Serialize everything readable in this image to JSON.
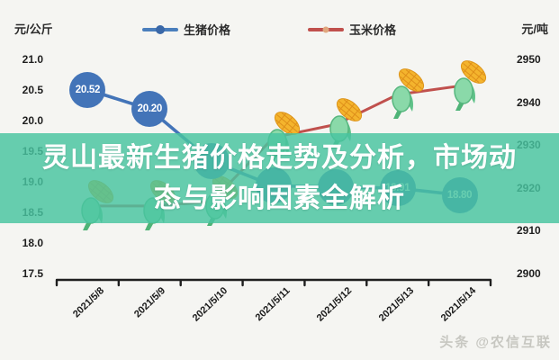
{
  "header": {
    "left_unit": "元/公斤",
    "right_unit": "元/吨"
  },
  "legend": [
    {
      "label": "生猪价格",
      "color": "#4a7ebc",
      "dot_color": "#3a68a8",
      "marker": "line-circle"
    },
    {
      "label": "玉米价格",
      "color": "#c0504d",
      "dot_color": "#e0a77e",
      "marker": "line-dash"
    }
  ],
  "banner": {
    "line1": "灵山最新生猪价格走势及分析，市场动",
    "line2": "态与影响因素全解析",
    "bg_color": "#48c4a0",
    "bg_opacity": 0.83,
    "text_color": "#ffffff"
  },
  "watermark": "头条 @农信互联",
  "colors": {
    "pig_series": "#4374b8",
    "corn_series": "#c0504d",
    "axis": "#1f1f1f",
    "background": "#f5f5f2"
  },
  "chart_data": {
    "type": "line",
    "categories": [
      "2021/5/8",
      "2021/5/9",
      "2021/5/10",
      "2021/5/11",
      "2021/5/12",
      "2021/5/13",
      "2021/5/14"
    ],
    "series": [
      {
        "name": "生猪价格",
        "axis": "left",
        "color": "#4374b8",
        "marker": "labeled-circle",
        "values": [
          20.52,
          20.2,
          19.35,
          18.95,
          18.93,
          18.91,
          18.8
        ],
        "point_labels": [
          "20.52",
          "20.20",
          "",
          "",
          "",
          "18.91",
          "18.80"
        ]
      },
      {
        "name": "玉米价格",
        "axis": "right",
        "color": "#c0504d",
        "marker": "corn-icon",
        "values": [
          2916,
          2916,
          2917,
          2932,
          2935,
          2942,
          2944
        ]
      }
    ],
    "left_axis": {
      "unit": "元/公斤",
      "ticks": [
        21.0,
        20.5,
        20.0,
        19.5,
        19.0,
        18.5,
        18.0,
        17.5
      ],
      "range": [
        17.5,
        21.0
      ]
    },
    "right_axis": {
      "unit": "元/吨",
      "ticks": [
        2950,
        2940,
        2930,
        2920,
        2910,
        2900
      ],
      "range": [
        2900,
        2950
      ]
    },
    "grid": false,
    "legend_position": "top-center",
    "x_label_rotation": -44
  }
}
